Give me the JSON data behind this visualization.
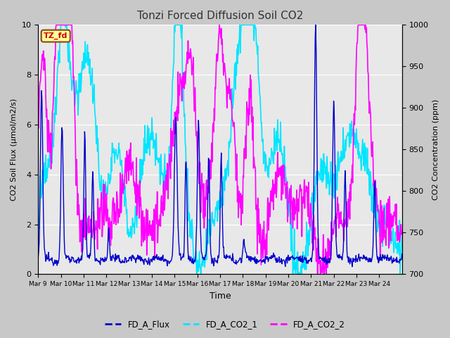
{
  "title": "Tonzi Forced Diffusion Soil CO2",
  "xlabel": "Time",
  "ylabel_left": "CO2 Soil Flux (μmol/m2/s)",
  "ylabel_right": "CO2 Concentration (ppm)",
  "ylim_left": [
    0.0,
    10.0
  ],
  "ylim_right": [
    700,
    1000
  ],
  "yticks_left": [
    0.0,
    2.0,
    4.0,
    6.0,
    8.0,
    10.0
  ],
  "yticks_right": [
    700,
    750,
    800,
    850,
    900,
    950,
    1000
  ],
  "line_colors": {
    "FD_A_Flux": "#0000cc",
    "FD_A_CO2_1": "#00e5ff",
    "FD_A_CO2_2": "#ff00ff"
  },
  "line_widths": {
    "FD_A_Flux": 1.0,
    "FD_A_CO2_1": 1.2,
    "FD_A_CO2_2": 1.2
  },
  "legend_labels": [
    "FD_A_Flux",
    "FD_A_CO2_1",
    "FD_A_CO2_2"
  ],
  "tag_text": "TZ_fd",
  "tag_facecolor": "#ffff99",
  "tag_edgecolor": "#8b4513",
  "tag_textcolor": "#cc0000",
  "fig_facecolor": "#c8c8c8",
  "plot_bg_color": "#e8e8e8",
  "xtick_labels": [
    "Mar 9",
    "Mar 10",
    "Mar 11",
    "Mar 12",
    "Mar 13",
    "Mar 14",
    "Mar 15",
    "Mar 16",
    "Mar 17",
    "Mar 18",
    "Mar 19",
    "Mar 20",
    "Mar 21",
    "Mar 22",
    "Mar 23",
    "Mar 24"
  ],
  "figsize": [
    6.4,
    4.8
  ],
  "dpi": 100
}
